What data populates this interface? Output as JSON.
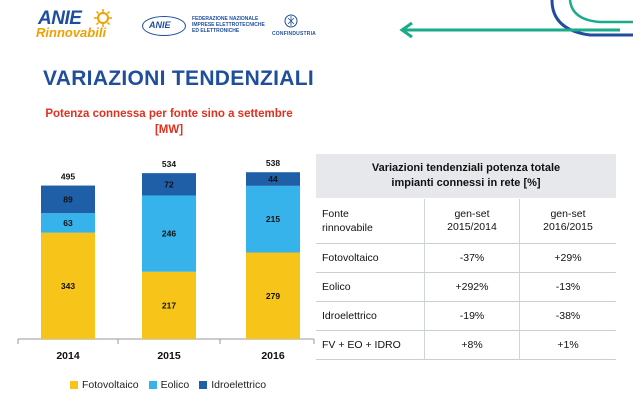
{
  "header": {
    "logo_anie": "ANIE",
    "logo_rinnovabili": "Rinnovabili",
    "logo_fed_oval": "ANIE",
    "logo_fed_text": "FEDERAZIONE NAZIONALE IMPRESE ELETTROTECNICHE ED ELETTRONICHE",
    "logo_confindustria": "CONFINDUSTRIA"
  },
  "page_title": "VARIAZIONI TENDENZIALI",
  "colors": {
    "title_blue": "#1f4e9c",
    "chart_title_red": "#e03020",
    "fotovoltaico": "#f7c51a",
    "eolico": "#36b3ea",
    "idroelettrico": "#1f5fa8",
    "negative_red": "#e02020",
    "accent_green": "#1aab8a"
  },
  "chart_data": {
    "type": "bar",
    "stacked": true,
    "title_line1": "Potenza connessa per fonte sino a settembre",
    "title_line2": "[MW]",
    "categories": [
      "2014",
      "2015",
      "2016"
    ],
    "series": [
      {
        "name": "Fotovoltaico",
        "values": [
          343,
          217,
          279
        ]
      },
      {
        "name": "Eolico",
        "values": [
          63,
          246,
          215
        ]
      },
      {
        "name": "Idroelettrico",
        "values": [
          89,
          72,
          44
        ]
      }
    ],
    "totals": [
      495,
      534,
      538
    ],
    "legend_position": "bottom",
    "grid": false
  },
  "table": {
    "title_line1": "Variazioni tendenziali potenza totale",
    "title_line2": "impianti connessi in rete [%]",
    "col0_line1": "Fonte",
    "col0_line2": "rinnovabile",
    "col1_line1": "gen-set",
    "col1_line2": "2015/2014",
    "col2_line1": "gen-set",
    "col2_line2": "2016/2015",
    "rows": [
      {
        "label": "Fotovoltaico",
        "v1": "-37%",
        "v2": "+29%"
      },
      {
        "label": "Eolico",
        "v1": "+292%",
        "v2": "-13%"
      },
      {
        "label": "Idroelettrico",
        "v1": "-19%",
        "v2": "-38%"
      },
      {
        "label": "FV + EO + IDRO",
        "v1": "+8%",
        "v2": "+1%"
      }
    ]
  }
}
